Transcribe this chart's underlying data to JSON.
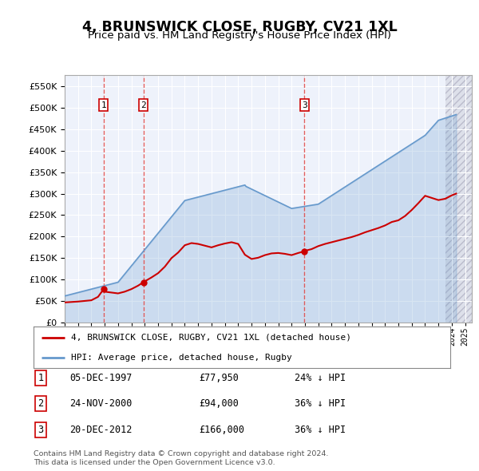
{
  "title": "4, BRUNSWICK CLOSE, RUGBY, CV21 1XL",
  "subtitle": "Price paid vs. HM Land Registry's House Price Index (HPI)",
  "legend_line1": "4, BRUNSWICK CLOSE, RUGBY, CV21 1XL (detached house)",
  "legend_line2": "HPI: Average price, detached house, Rugby",
  "footer1": "Contains HM Land Registry data © Crown copyright and database right 2024.",
  "footer2": "This data is licensed under the Open Government Licence v3.0.",
  "transactions": [
    {
      "num": 1,
      "date": "05-DEC-1997",
      "price": "£77,950",
      "hpi": "24% ↓ HPI",
      "year": 1997.92
    },
    {
      "num": 2,
      "date": "24-NOV-2000",
      "price": "£94,000",
      "hpi": "36% ↓ HPI",
      "year": 2000.9
    },
    {
      "num": 3,
      "date": "20-DEC-2012",
      "price": "£166,000",
      "hpi": "36% ↓ HPI",
      "year": 2012.97
    }
  ],
  "xmin": 1995.0,
  "xmax": 2025.5,
  "ymin": 0,
  "ymax": 575000,
  "yticks": [
    0,
    50000,
    100000,
    150000,
    200000,
    250000,
    300000,
    350000,
    400000,
    450000,
    500000,
    550000
  ],
  "red_color": "#cc0000",
  "blue_color": "#6699cc",
  "vline_color": "#dd4444",
  "plot_bg": "#eef2fb"
}
